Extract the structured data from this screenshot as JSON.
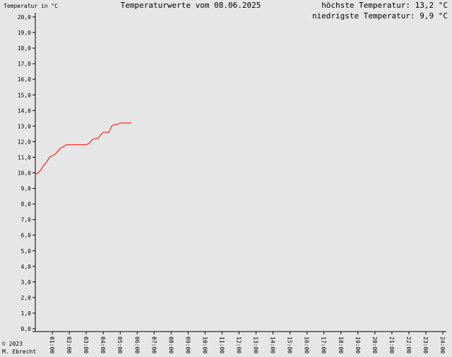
{
  "chart_data": {
    "type": "line",
    "title": "Temperaturwerte vom 08.06.2025",
    "y_label": "Temperatur in °C",
    "annotations": [
      "höchste Temperatur: 13,2 °C",
      "niedrigste Temperatur: 9,9 °C"
    ],
    "credits": [
      "© 2023",
      "M. Ebrecht"
    ],
    "x": [
      0,
      0.17,
      0.33,
      0.5,
      0.67,
      0.83,
      1.0,
      1.17,
      1.33,
      1.5,
      1.67,
      1.83,
      2.0,
      2.5,
      3.0,
      3.17,
      3.33,
      3.5,
      3.67,
      3.83,
      4.0,
      4.17,
      4.33,
      4.5,
      4.67,
      4.83,
      5.0,
      5.17,
      5.33,
      5.5,
      5.67
    ],
    "series": [
      {
        "name": "Temperatur",
        "color": "#ff0000",
        "values": [
          9.9,
          10.0,
          10.2,
          10.5,
          10.7,
          11.0,
          11.1,
          11.2,
          11.4,
          11.6,
          11.7,
          11.8,
          11.8,
          11.8,
          11.8,
          11.9,
          12.1,
          12.2,
          12.2,
          12.4,
          12.6,
          12.6,
          12.6,
          13.0,
          13.1,
          13.1,
          13.2,
          13.2,
          13.2,
          13.2,
          13.2
        ]
      }
    ],
    "xlim": [
      0,
      24
    ],
    "xticks": [
      {
        "value": 1,
        "label": "01:00"
      },
      {
        "value": 2,
        "label": "02:00"
      },
      {
        "value": 3,
        "label": "03:00"
      },
      {
        "value": 4,
        "label": "04:00"
      },
      {
        "value": 5,
        "label": "05:00"
      },
      {
        "value": 6,
        "label": "06:00"
      },
      {
        "value": 7,
        "label": "07:00"
      },
      {
        "value": 8,
        "label": "08:00"
      },
      {
        "value": 9,
        "label": "09:00"
      },
      {
        "value": 10,
        "label": "10:00"
      },
      {
        "value": 11,
        "label": "11:00"
      },
      {
        "value": 12,
        "label": "12:00"
      },
      {
        "value": 13,
        "label": "13:00"
      },
      {
        "value": 14,
        "label": "14:00"
      },
      {
        "value": 15,
        "label": "15:00"
      },
      {
        "value": 16,
        "label": "16:00"
      },
      {
        "value": 17,
        "label": "17:00"
      },
      {
        "value": 18,
        "label": "18:00"
      },
      {
        "value": 19,
        "label": "19:00"
      },
      {
        "value": 20,
        "label": "20:00"
      },
      {
        "value": 21,
        "label": "21:00"
      },
      {
        "value": 22,
        "label": "22:00"
      },
      {
        "value": 23,
        "label": "23:00"
      },
      {
        "value": 24,
        "label": "24:00"
      }
    ],
    "ylim": [
      0,
      20
    ],
    "yticks": [
      {
        "value": 0,
        "label": "0,0"
      },
      {
        "value": 1,
        "label": "1,0"
      },
      {
        "value": 2,
        "label": "2,0"
      },
      {
        "value": 3,
        "label": "3,0"
      },
      {
        "value": 4,
        "label": "4,0"
      },
      {
        "value": 5,
        "label": "5,0"
      },
      {
        "value": 6,
        "label": "6,0"
      },
      {
        "value": 7,
        "label": "7,0"
      },
      {
        "value": 8,
        "label": "8,0"
      },
      {
        "value": 9,
        "label": "9,0"
      },
      {
        "value": 10,
        "label": "10,0"
      },
      {
        "value": 11,
        "label": "11,0"
      },
      {
        "value": 12,
        "label": "12,0"
      },
      {
        "value": 13,
        "label": "13,0"
      },
      {
        "value": 14,
        "label": "14,0"
      },
      {
        "value": 15,
        "label": "15,0"
      },
      {
        "value": 16,
        "label": "16,0"
      },
      {
        "value": 17,
        "label": "17,0"
      },
      {
        "value": 18,
        "label": "18,0"
      },
      {
        "value": 19,
        "label": "19,0"
      },
      {
        "value": 20,
        "label": "20,0"
      }
    ],
    "grid": false
  }
}
